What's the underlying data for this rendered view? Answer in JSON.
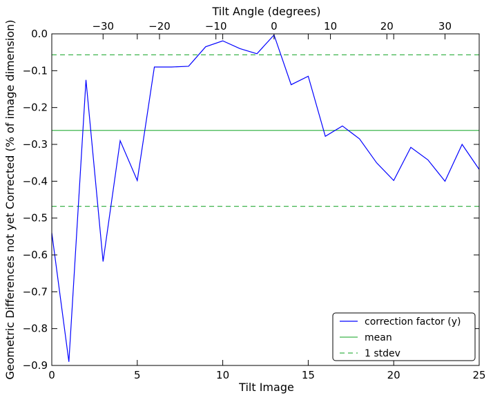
{
  "chart_data": {
    "type": "line",
    "xlabel": "Tilt Image",
    "ylabel": "Geometric Differences not yet Corrected (% of image dimension)",
    "top_xlabel": "Tilt Angle (degrees)",
    "xlim": [
      0,
      25
    ],
    "ylim": [
      -0.9,
      0.0
    ],
    "x_ticks": [
      0,
      5,
      10,
      15,
      20,
      25
    ],
    "y_ticks": [
      0.0,
      -0.1,
      -0.2,
      -0.3,
      -0.4,
      -0.5,
      -0.6,
      -0.7,
      -0.8,
      -0.9
    ],
    "top_ticks": [
      {
        "label": "−30",
        "image": 3
      },
      {
        "label": "−20",
        "image": 6.3
      },
      {
        "label": "−10",
        "image": 9.6
      },
      {
        "label": "0",
        "image": 13
      },
      {
        "label": "10",
        "image": 16.3
      },
      {
        "label": "20",
        "image": 19.6
      },
      {
        "label": "30",
        "image": 23
      }
    ],
    "series": [
      {
        "name": "correction factor (y)",
        "color": "#0000ff",
        "style": "solid",
        "x": [
          0,
          1,
          2,
          3,
          4,
          5,
          6,
          7,
          8,
          9,
          10,
          11,
          12,
          13,
          14,
          15,
          16,
          17,
          18,
          19,
          20,
          21,
          22,
          23,
          24,
          25
        ],
        "y": [
          -0.54,
          -0.89,
          -0.125,
          -0.618,
          -0.29,
          -0.398,
          -0.09,
          -0.09,
          -0.088,
          -0.035,
          -0.019,
          -0.04,
          -0.054,
          -0.003,
          -0.138,
          -0.115,
          -0.278,
          -0.25,
          -0.285,
          -0.35,
          -0.398,
          -0.308,
          -0.342,
          -0.4,
          -0.3,
          -0.368
        ]
      },
      {
        "name": "mean",
        "color": "#3cb44b",
        "style": "solid",
        "hline": -0.262
      },
      {
        "name": "1 stdev",
        "color": "#3cb44b",
        "style": "dashed",
        "hline_pair": [
          -0.057,
          -0.468
        ]
      }
    ],
    "legend": {
      "position": "bottom-right",
      "entries": [
        {
          "label": "correction factor (y)",
          "color": "#0000ff",
          "style": "solid"
        },
        {
          "label": "mean",
          "color": "#3cb44b",
          "style": "solid"
        },
        {
          "label": "1 stdev",
          "color": "#3cb44b",
          "style": "dashed"
        }
      ]
    },
    "grid": false
  }
}
